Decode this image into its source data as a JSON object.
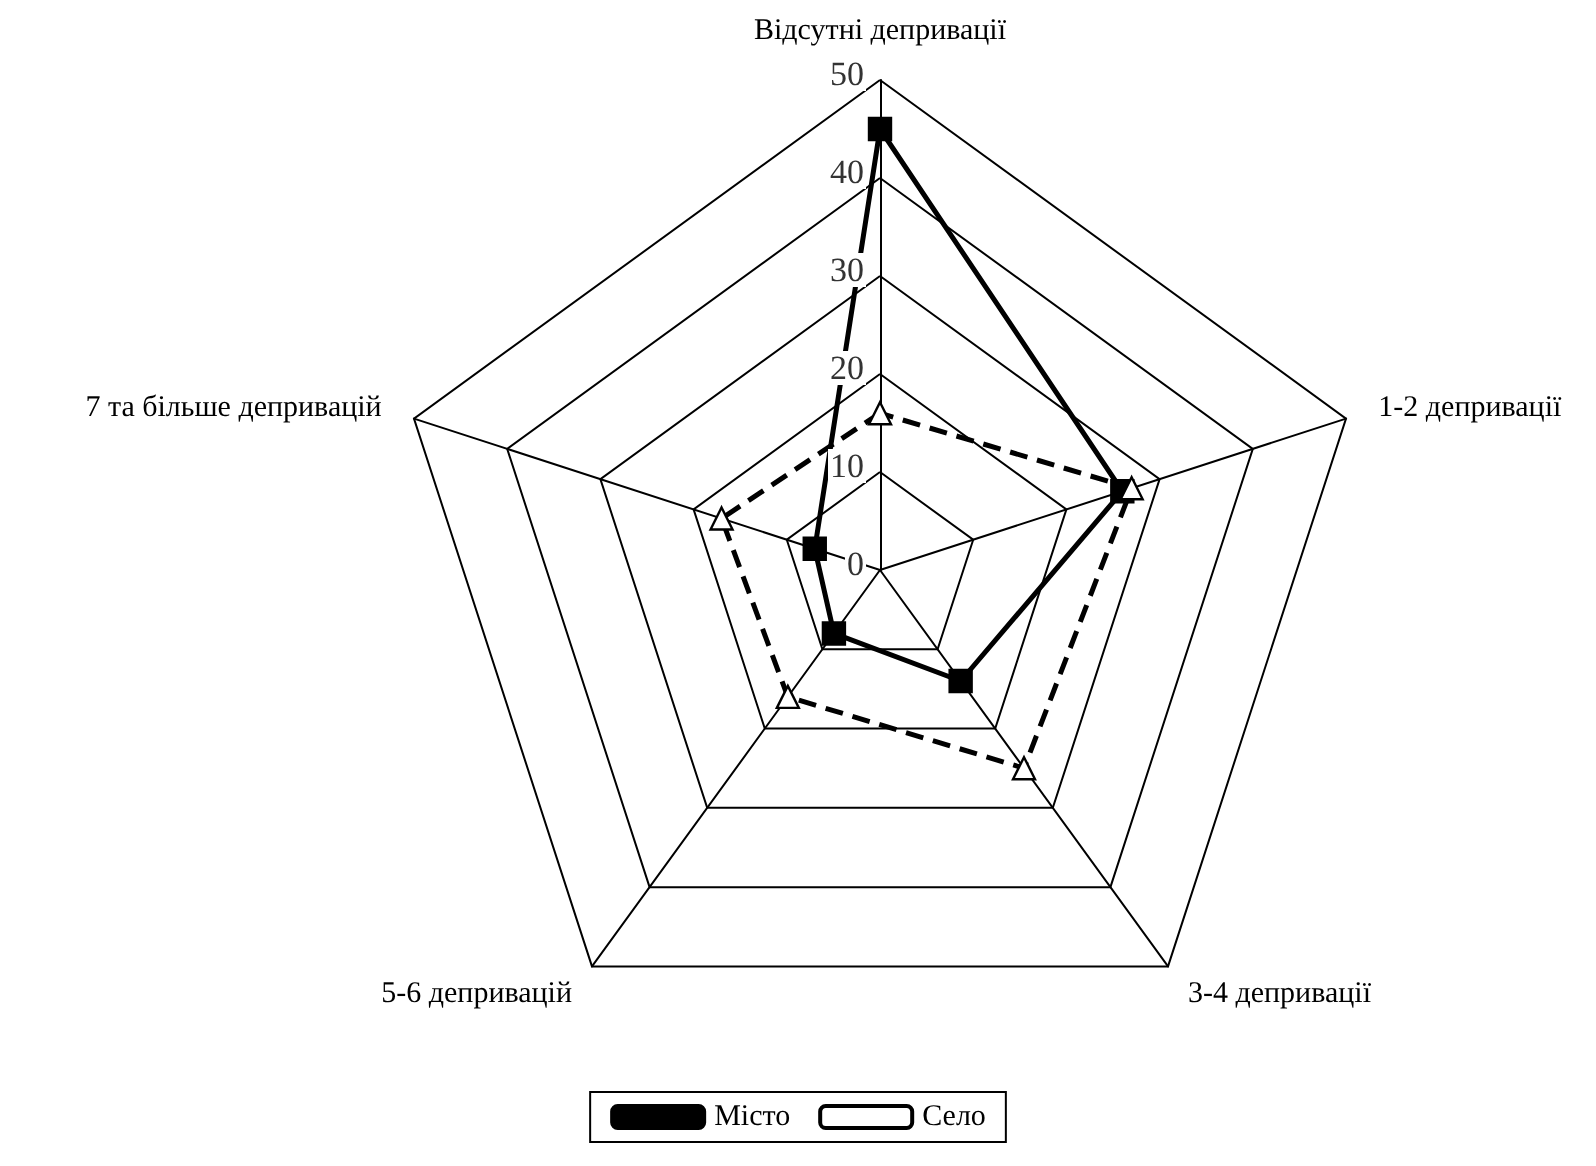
{
  "chart_data": {
    "type": "radar",
    "categories": [
      "Відсутні депривації",
      "1-2 депривації",
      "3-4 депривації",
      "5-6 депривацій",
      "7 та більше депривацій"
    ],
    "ylim": [
      0,
      50
    ],
    "yticks": [
      0,
      10,
      20,
      30,
      40,
      50
    ],
    "legend": "bottom",
    "series": [
      {
        "name": "Місто",
        "color": "#000000",
        "marker": "square",
        "line_style": "solid",
        "values": [
          45,
          26,
          14,
          8,
          7
        ]
      },
      {
        "name": "Село",
        "color": "#000000",
        "marker": "triangle",
        "line_style": "dashed",
        "values": [
          16,
          27,
          25,
          16,
          17
        ]
      }
    ]
  }
}
